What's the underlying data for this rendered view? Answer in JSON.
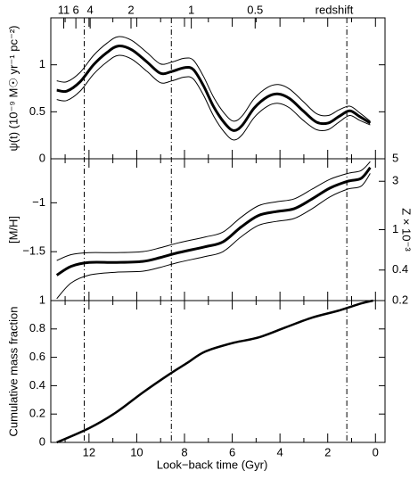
{
  "chart_data": {
    "type": "line",
    "xlim": [
      13.6,
      -0.4
    ],
    "xticks": [
      12,
      10,
      8,
      6,
      4,
      2,
      0
    ],
    "xminor": [
      13,
      11,
      9,
      7,
      5,
      3,
      1
    ],
    "xlabel": "Look−back time (Gyr)",
    "vlines": [
      12.2,
      8.55,
      1.2
    ],
    "x2label": "redshift",
    "x2ticks": [
      11,
      6,
      4,
      2,
      1,
      0.5
    ],
    "panels": [
      {
        "ylabel": "ψ(t) (10⁻⁹ M☉ yr⁻¹ pc⁻²)",
        "ylim": [
          0,
          1.5
        ],
        "yticks": [
          0,
          0.5,
          1
        ],
        "x": [
          13.35,
          12.93,
          12.37,
          11.81,
          11.25,
          10.77,
          10.21,
          9.57,
          9.01,
          8.52,
          8.0,
          7.63,
          7.21,
          6.77,
          6.32,
          5.94,
          5.57,
          5.08,
          4.52,
          4.07,
          3.59,
          3.03,
          2.47,
          1.98,
          1.53,
          1.08,
          0.67,
          0.22
        ],
        "series": [
          {
            "color": "#000000",
            "linewidth": 1,
            "values": [
              0.83,
              0.82,
              0.92,
              1.1,
              1.23,
              1.3,
              1.26,
              1.13,
              1.01,
              1.03,
              1.07,
              1.05,
              0.88,
              0.65,
              0.48,
              0.4,
              0.46,
              0.64,
              0.76,
              0.79,
              0.74,
              0.61,
              0.48,
              0.46,
              0.52,
              0.56,
              0.49,
              0.4
            ]
          },
          {
            "color": "#000000",
            "linewidth": 3,
            "values": [
              0.73,
              0.72,
              0.82,
              1.0,
              1.13,
              1.2,
              1.16,
              1.03,
              0.91,
              0.93,
              0.97,
              0.95,
              0.78,
              0.55,
              0.38,
              0.3,
              0.36,
              0.54,
              0.66,
              0.69,
              0.64,
              0.51,
              0.39,
              0.38,
              0.45,
              0.51,
              0.45,
              0.38
            ]
          },
          {
            "color": "#000000",
            "linewidth": 1,
            "values": [
              0.63,
              0.62,
              0.72,
              0.9,
              1.03,
              1.1,
              1.06,
              0.93,
              0.81,
              0.83,
              0.87,
              0.85,
              0.68,
              0.45,
              0.28,
              0.2,
              0.26,
              0.44,
              0.56,
              0.59,
              0.54,
              0.41,
              0.31,
              0.31,
              0.39,
              0.46,
              0.41,
              0.36
            ]
          }
        ]
      },
      {
        "ylabel": "[M/H]",
        "ylim": [
          -2,
          -0.55
        ],
        "yticks": [
          {
            "value": -1.5,
            "label": "−1.5"
          },
          {
            "value": -1,
            "label": "−1"
          }
        ],
        "y2label": "Z × 10⁻³",
        "y2lim": [
          0.2,
          5
        ],
        "y2log": true,
        "y2ticks": [
          0.2,
          0.4,
          1,
          3,
          5
        ],
        "x": [
          13.35,
          12.75,
          12.0,
          10.88,
          9.76,
          9.01,
          8.26,
          7.14,
          6.39,
          5.64,
          4.9,
          4.15,
          3.4,
          2.65,
          1.91,
          1.16,
          0.6,
          0.22
        ],
        "series": [
          {
            "color": "#000000",
            "linewidth": 1,
            "values": [
              -1.59,
              -1.53,
              -1.51,
              -1.51,
              -1.5,
              -1.46,
              -1.41,
              -1.35,
              -1.3,
              -1.15,
              -1.03,
              -0.99,
              -0.96,
              -0.86,
              -0.76,
              -0.7,
              -0.67,
              -0.58
            ]
          },
          {
            "color": "#000000",
            "linewidth": 3,
            "values": [
              -1.74,
              -1.65,
              -1.61,
              -1.61,
              -1.6,
              -1.56,
              -1.51,
              -1.45,
              -1.4,
              -1.25,
              -1.13,
              -1.09,
              -1.06,
              -0.96,
              -0.85,
              -0.78,
              -0.75,
              -0.64
            ]
          },
          {
            "color": "#000000",
            "linewidth": 1,
            "values": [
              -1.98,
              -1.82,
              -1.74,
              -1.71,
              -1.7,
              -1.66,
              -1.61,
              -1.55,
              -1.5,
              -1.35,
              -1.23,
              -1.19,
              -1.16,
              -1.06,
              -0.94,
              -0.86,
              -0.83,
              -0.7
            ]
          }
        ]
      },
      {
        "ylabel": "Cumulative mass fraction",
        "ylim": [
          0,
          1
        ],
        "yticks": [
          0,
          0.2,
          0.4,
          0.6,
          0.8,
          1
        ],
        "x": [
          13.35,
          12.0,
          10.88,
          9.76,
          8.64,
          7.89,
          7.14,
          6.0,
          4.9,
          3.78,
          2.65,
          1.53,
          0.6,
          0.1
        ],
        "series": [
          {
            "color": "#000000",
            "linewidth": 2.5,
            "values": [
              0,
              0.1,
              0.21,
              0.35,
              0.48,
              0.56,
              0.64,
              0.7,
              0.74,
              0.81,
              0.88,
              0.93,
              0.98,
              1.0
            ]
          }
        ]
      }
    ]
  }
}
